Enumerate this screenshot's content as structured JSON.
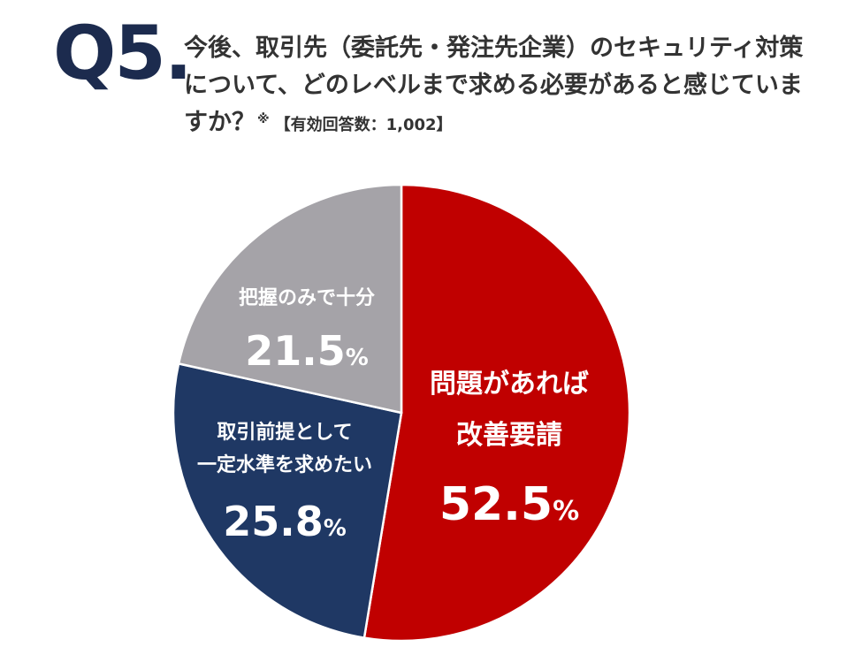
{
  "header": {
    "qnum": "Q5.",
    "question": "今後、取引先（委託先・発注先企業）のセキュリティ対策について、どのレベルまで求める必要があると感じていますか？",
    "note_mark": "※",
    "respondents": "【有効回答数：1,002】"
  },
  "chart_data": {
    "type": "pie",
    "title": "",
    "slices": [
      {
        "label_lines": [
          "問題があれば",
          "改善要請"
        ],
        "value": 52.5,
        "value_text": "52.5",
        "unit": "%",
        "color": "#c00000"
      },
      {
        "label_lines": [
          "取引前提として",
          "一定水準を求めたい"
        ],
        "value": 25.8,
        "value_text": "25.8",
        "unit": "%",
        "color": "#1f3864"
      },
      {
        "label_lines": [
          "把握のみで十分"
        ],
        "value": 21.5,
        "value_text": "21.5",
        "unit": "%",
        "color": "#a5a3a8"
      }
    ],
    "start_angle_deg": 0,
    "direction": "clockwise",
    "legend": "none"
  }
}
